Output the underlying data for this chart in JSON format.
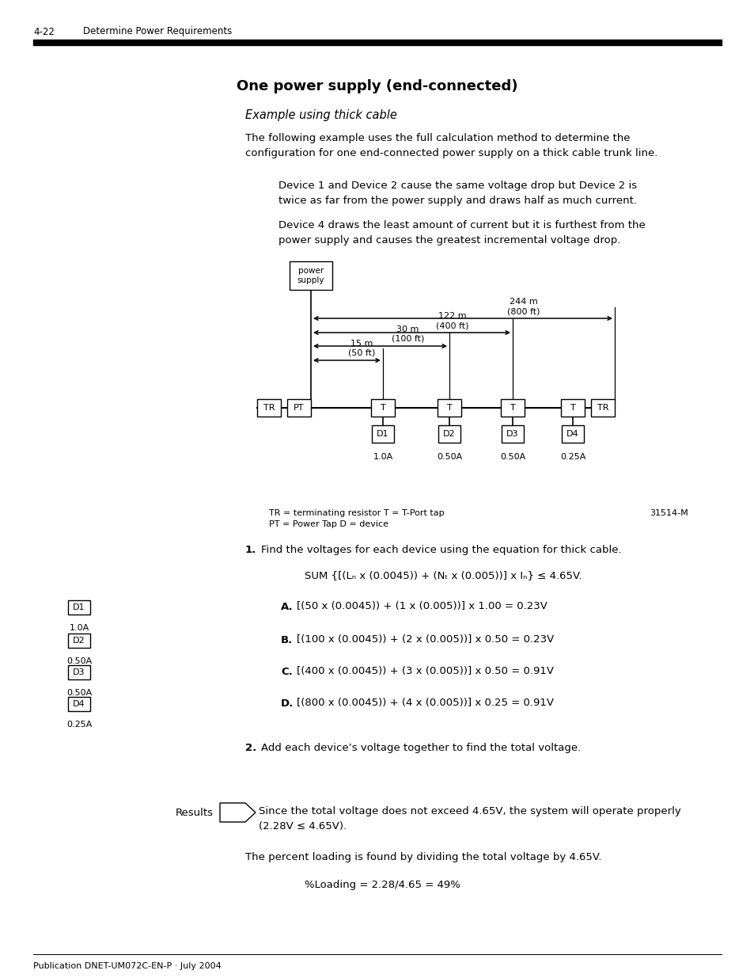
{
  "page_header_number": "4-22",
  "page_header_text": "Determine Power Requirements",
  "title": "One power supply (end-connected)",
  "subtitle": "Example using thick cable",
  "body_text1": "The following example uses the full calculation method to determine the\nconfiguration for one end-connected power supply on a thick cable trunk line.",
  "callout1": "Device 1 and Device 2 cause the same voltage drop but Device 2 is\ntwice as far from the power supply and draws half as much current.",
  "callout2": "Device 4 draws the least amount of current but it is furthest from the\npower supply and causes the greatest incremental voltage drop.",
  "legend_text": "TR = terminating resistor T = T-Port tap\nPT = Power Tap D = device",
  "figure_id": "31514-M",
  "step1_header": "1.   Find the voltages for each device using the equation for thick cable.",
  "step1_formula": "SUM {[(Lₙ x (0.0045)) + (Nₜ x (0.005))] x Iₙ} ≤ 4.65V.",
  "step1_A_bold": "A.",
  "step1_A_eq": "[(50 x (0.0045)) + (1 x (0.005))] x 1.00 = 0.23V",
  "step1_B_bold": "B.",
  "step1_B_eq": "[(100 x (0.0045)) + (2 x (0.005))] x 0.50 = 0.23V",
  "step1_C_bold": "C.",
  "step1_C_eq": "[(400 x (0.0045)) + (3 x (0.005))] x 0.50 = 0.91V",
  "step1_D_bold": "D.",
  "step1_D_eq": "[(800 x (0.0045)) + (4 x (0.005))] x 0.25 = 0.91V",
  "step2_header": "2.   Add each device’s voltage together to find the total voltage.",
  "results_label": "Results",
  "results_text": "Since the total voltage does not exceed 4.65V, the system will operate properly\n(2.28V ≤ 4.65V).",
  "percent_loading_text": "The percent loading is found by dividing the total voltage by 4.65V.",
  "percent_loading_eq": "%Loading = 2.28/4.65 = 49%",
  "footer_text": "Publication DNET-UM072C-EN-P · July 2004",
  "bg_color": "#ffffff",
  "text_color": "#000000"
}
